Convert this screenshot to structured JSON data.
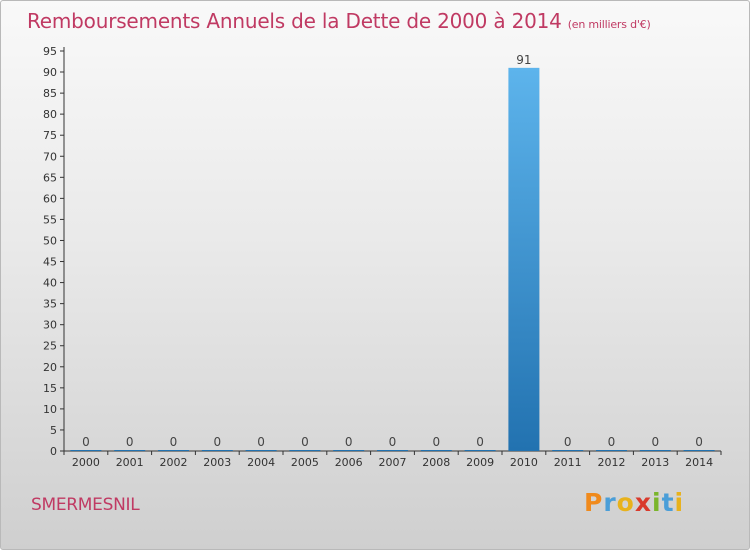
{
  "header": {
    "title": "Remboursements Annuels de la Dette de 2000 à 2014",
    "unit": "(en milliers d'€)"
  },
  "footer": {
    "place": "SMERMESNIL",
    "logo": [
      "P",
      "r",
      "o",
      "x",
      "i",
      "t",
      "i"
    ],
    "logo_colors": [
      "#f08a1c",
      "#4a9ed8",
      "#e8b21c",
      "#d93a2c",
      "#7ab52b",
      "#4a9ed8",
      "#e8b21c"
    ]
  },
  "colors": {
    "title": "#c03a63",
    "bar_top": "#5db4ec",
    "bar_bottom": "#2272b0",
    "axis": "#333333"
  },
  "chart_data": {
    "type": "bar",
    "categories": [
      "2000",
      "2001",
      "2002",
      "2003",
      "2004",
      "2005",
      "2006",
      "2007",
      "2008",
      "2009",
      "2010",
      "2011",
      "2012",
      "2013",
      "2014"
    ],
    "values": [
      0,
      0,
      0,
      0,
      0,
      0,
      0,
      0,
      0,
      0,
      91,
      0,
      0,
      0,
      0
    ],
    "data_labels": [
      "0",
      "0",
      "0",
      "0",
      "0",
      "0",
      "0",
      "0",
      "0",
      "0",
      "91",
      "0",
      "0",
      "0",
      "0"
    ],
    "ylim": [
      0,
      95
    ],
    "yticks": [
      0,
      5,
      10,
      15,
      20,
      25,
      30,
      35,
      40,
      45,
      50,
      55,
      60,
      65,
      70,
      75,
      80,
      85,
      90,
      95
    ],
    "title": "Remboursements Annuels de la Dette de 2000 à 2014",
    "grid": false
  }
}
